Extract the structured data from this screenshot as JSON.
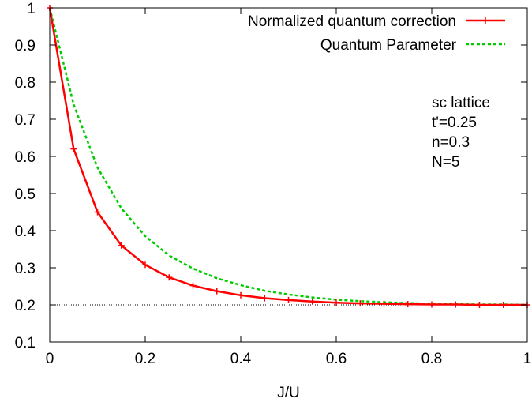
{
  "chart_data": {
    "type": "line",
    "title": "",
    "xlabel": "J/U",
    "ylabel": "",
    "xlim": [
      0,
      1
    ],
    "ylim": [
      0.1,
      1
    ],
    "x_ticks": [
      0,
      0.2,
      0.4,
      0.6,
      0.8,
      1
    ],
    "x_tick_labels": [
      "0",
      "0.2",
      "0.4",
      "0.6",
      "0.8",
      "1"
    ],
    "y_ticks": [
      0.1,
      0.2,
      0.3,
      0.4,
      0.5,
      0.6,
      0.7,
      0.8,
      0.9,
      1
    ],
    "y_tick_labels": [
      "0.1",
      "0.2",
      "0.3",
      "0.4",
      "0.5",
      "0.6",
      "0.7",
      "0.8",
      "0.9",
      "1"
    ],
    "grid": false,
    "legend_position": "top-right",
    "series": [
      {
        "name": "Normalized quantum correction",
        "color": "#ff0000",
        "style": "solid",
        "marker": "plus",
        "x": [
          0,
          0.05,
          0.1,
          0.15,
          0.2,
          0.25,
          0.3,
          0.35,
          0.4,
          0.45,
          0.5,
          0.55,
          0.6,
          0.65,
          0.7,
          0.75,
          0.8,
          0.85,
          0.9,
          0.95,
          1.0
        ],
        "y": [
          1.0,
          0.62,
          0.45,
          0.36,
          0.308,
          0.274,
          0.252,
          0.237,
          0.226,
          0.218,
          0.213,
          0.209,
          0.206,
          0.204,
          0.203,
          0.202,
          0.201,
          0.201,
          0.2,
          0.2,
          0.2
        ]
      },
      {
        "name": "Quantum Parameter",
        "color": "#00cc00",
        "style": "dashed",
        "marker": "none",
        "x": [
          0,
          0.05,
          0.1,
          0.15,
          0.2,
          0.25,
          0.3,
          0.35,
          0.4,
          0.45,
          0.5,
          0.55,
          0.6,
          0.65,
          0.7,
          0.75,
          0.8,
          0.85,
          0.9,
          0.95,
          1.0
        ],
        "y": [
          1.0,
          0.74,
          0.57,
          0.46,
          0.385,
          0.333,
          0.298,
          0.272,
          0.253,
          0.238,
          0.228,
          0.22,
          0.214,
          0.21,
          0.207,
          0.205,
          0.203,
          0.202,
          0.201,
          0.201,
          0.2
        ]
      }
    ],
    "reference_line": {
      "y": 0.2,
      "style": "dotted",
      "color": "#000000"
    },
    "annotation": [
      "sc lattice",
      "t'=0.25",
      "n=0.3",
      "N=5"
    ]
  }
}
